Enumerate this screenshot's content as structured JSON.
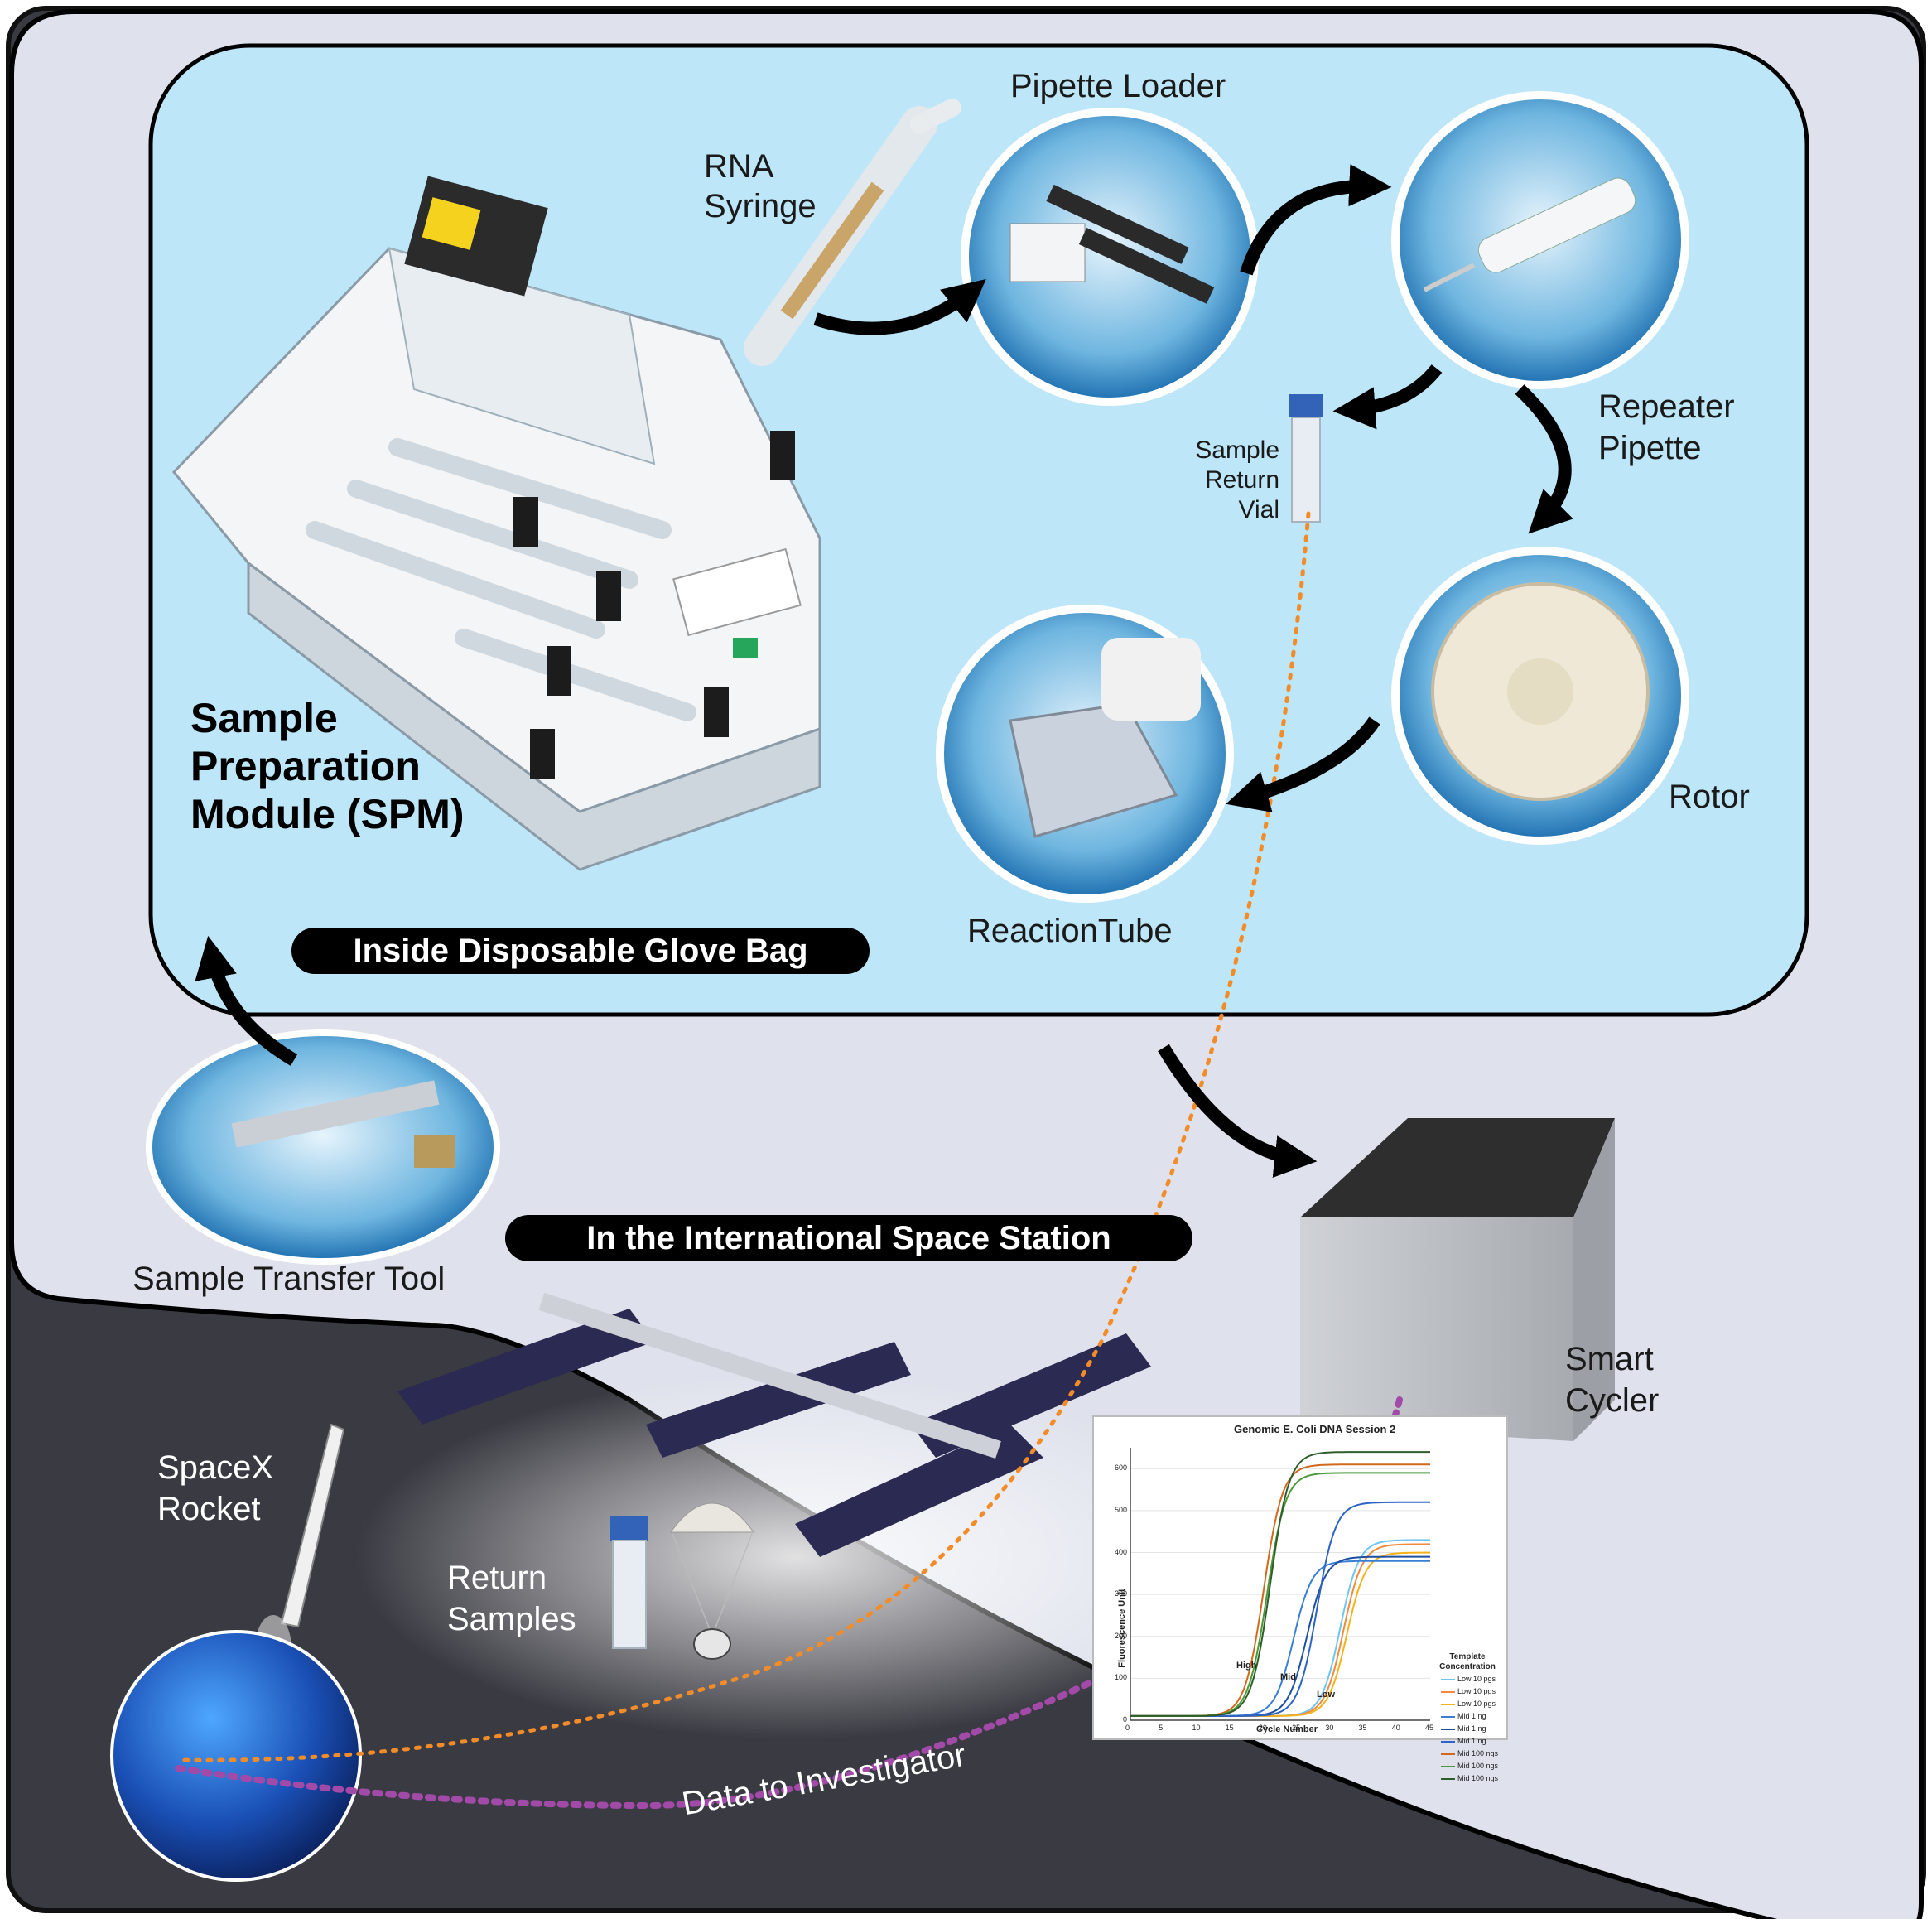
{
  "sections": {
    "glove_bag": "Inside Disposable Glove Bag",
    "iss": "In the International Space Station"
  },
  "labels": {
    "pipette_loader": "Pipette Loader",
    "rna_syringe_line1": "RNA",
    "rna_syringe_line2": "Syringe",
    "repeater_line1": "Repeater",
    "repeater_line2": "Pipette",
    "sample_return_line1": "Sample",
    "sample_return_line2": "Return",
    "sample_return_line3": "Vial",
    "rotor": "Rotor",
    "reaction_tube": "ReactionTube",
    "spm_line1": "Sample",
    "spm_line2": "Preparation",
    "spm_line3": "Module (SPM)",
    "sample_transfer_tool": "Sample Transfer Tool",
    "smart_line1": "Smart",
    "smart_line2": "Cycler",
    "spacex_line1": "SpaceX",
    "spacex_line2": "Rocket",
    "return_line1": "Return",
    "return_line2": "Samples",
    "data_to_investigator": "Data to Investigator"
  },
  "chart_data": {
    "type": "line",
    "title": "Genomic E. Coli DNA Session 2",
    "xlabel": "Cycle Number",
    "ylabel": "Fluorescence Unit",
    "xlim": [
      0,
      45
    ],
    "ylim": [
      0,
      650
    ],
    "xticks": [
      0,
      5,
      10,
      15,
      20,
      25,
      30,
      35,
      40,
      45
    ],
    "yticks": [
      0,
      100,
      200,
      300,
      400,
      500,
      600
    ],
    "legend_title": "Template Concentration",
    "curve_labels": [
      "High",
      "Mid",
      "Low"
    ],
    "series": [
      {
        "name": "Low 10 pgs",
        "color": "#6ec6f0",
        "ct": 31.5,
        "plateau": 430
      },
      {
        "name": "Low 10 pgs",
        "color": "#f08a3c",
        "ct": 32.0,
        "plateau": 420
      },
      {
        "name": "Low 10 pgs",
        "color": "#f5b21c",
        "ct": 32.5,
        "plateau": 400
      },
      {
        "name": "Mid 1 ng",
        "color": "#3a7fd5",
        "ct": 24.5,
        "plateau": 380
      },
      {
        "name": "Mid 1 ng",
        "color": "#1f4fa0",
        "ct": 26.5,
        "plateau": 390
      },
      {
        "name": "Mid 1 ng",
        "color": "#2d63c4",
        "ct": 28.0,
        "plateau": 520
      },
      {
        "name": "Mid 100 ngs",
        "color": "#d2691e",
        "ct": 20.0,
        "plateau": 610
      },
      {
        "name": "Mid 100 ngs",
        "color": "#4a9a3a",
        "ct": 20.5,
        "plateau": 590
      },
      {
        "name": "Mid 100 ngs",
        "color": "#2e5e2a",
        "ct": 21.0,
        "plateau": 640
      }
    ]
  },
  "colors": {
    "outer_panel": "#dfe2ec",
    "glove_bag": "#bde6f8",
    "space": "#3a3a42",
    "orange_path": "#f28c28",
    "purple_path": "#a24aa8"
  }
}
